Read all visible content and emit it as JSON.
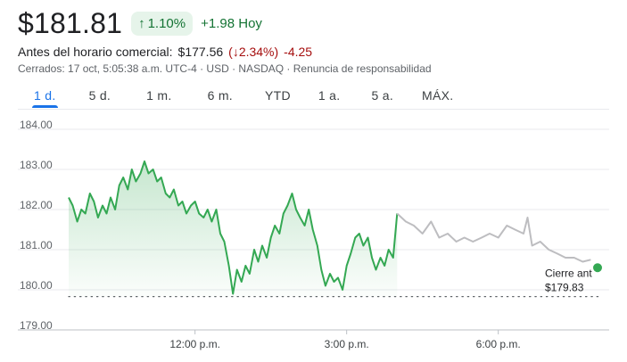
{
  "quote": {
    "price": "$181.81",
    "change_pct": "1.10%",
    "change_abs": "+1.98 Hoy"
  },
  "premarket": {
    "label": "Antes del horario comercial:",
    "price": "$177.56",
    "open_paren": "(",
    "change_pct": "2.34%)",
    "change_abs": "-4.25"
  },
  "meta": {
    "text": "Cerrados: 17 oct, 5:05:38 a.m. UTC-4 · USD · NASDAQ · Renuncia de responsabilidad"
  },
  "tabs": [
    "1 d.",
    "5 d.",
    "1 m.",
    "6 m.",
    "YTD",
    "1 a.",
    "5 a.",
    "MÁX."
  ],
  "active_tab": 0,
  "colors": {
    "up": "#34a853",
    "up_dark": "#137333",
    "down": "#a50e0e",
    "after_hours": "#bdbdc0",
    "accent": "#1a73e8"
  },
  "chart_data": {
    "type": "line",
    "ylim": [
      179.0,
      184.0
    ],
    "y_ticks": [
      "184.00",
      "183.00",
      "182.00",
      "181.00",
      "180.00",
      "179.00"
    ],
    "x_ticks": [
      "12:00 p.m.",
      "3:00 p.m.",
      "6:00 p.m."
    ],
    "xlim_hours": [
      9.5,
      20.0
    ],
    "x_tick_hours": [
      12,
      15,
      18
    ],
    "previous_close": {
      "label": "Cierre ant",
      "value_label": "$179.83",
      "value": 179.83
    },
    "series": [
      {
        "session": "regular",
        "points": [
          [
            9.5,
            182.3
          ],
          [
            9.58,
            182.1
          ],
          [
            9.67,
            181.7
          ],
          [
            9.75,
            182.0
          ],
          [
            9.83,
            181.9
          ],
          [
            9.92,
            182.4
          ],
          [
            10.0,
            182.2
          ],
          [
            10.08,
            181.8
          ],
          [
            10.17,
            182.1
          ],
          [
            10.25,
            181.9
          ],
          [
            10.33,
            182.3
          ],
          [
            10.42,
            182.0
          ],
          [
            10.5,
            182.6
          ],
          [
            10.58,
            182.8
          ],
          [
            10.67,
            182.5
          ],
          [
            10.75,
            183.0
          ],
          [
            10.83,
            182.7
          ],
          [
            10.92,
            182.9
          ],
          [
            11.0,
            183.2
          ],
          [
            11.08,
            182.9
          ],
          [
            11.17,
            183.0
          ],
          [
            11.25,
            182.7
          ],
          [
            11.33,
            182.8
          ],
          [
            11.42,
            182.4
          ],
          [
            11.5,
            182.3
          ],
          [
            11.58,
            182.5
          ],
          [
            11.67,
            182.1
          ],
          [
            11.75,
            182.2
          ],
          [
            11.83,
            181.9
          ],
          [
            11.92,
            182.1
          ],
          [
            12.0,
            182.2
          ],
          [
            12.08,
            181.9
          ],
          [
            12.17,
            181.8
          ],
          [
            12.25,
            182.0
          ],
          [
            12.33,
            181.7
          ],
          [
            12.42,
            182.0
          ],
          [
            12.5,
            181.4
          ],
          [
            12.58,
            181.2
          ],
          [
            12.67,
            180.6
          ],
          [
            12.75,
            179.9
          ],
          [
            12.83,
            180.5
          ],
          [
            12.92,
            180.2
          ],
          [
            13.0,
            180.6
          ],
          [
            13.08,
            180.4
          ],
          [
            13.17,
            181.0
          ],
          [
            13.25,
            180.7
          ],
          [
            13.33,
            181.1
          ],
          [
            13.42,
            180.8
          ],
          [
            13.5,
            181.3
          ],
          [
            13.58,
            181.6
          ],
          [
            13.67,
            181.4
          ],
          [
            13.75,
            181.9
          ],
          [
            13.83,
            182.1
          ],
          [
            13.92,
            182.4
          ],
          [
            14.0,
            182.0
          ],
          [
            14.08,
            181.8
          ],
          [
            14.17,
            181.6
          ],
          [
            14.25,
            182.0
          ],
          [
            14.33,
            181.5
          ],
          [
            14.42,
            181.1
          ],
          [
            14.5,
            180.5
          ],
          [
            14.58,
            180.1
          ],
          [
            14.67,
            180.4
          ],
          [
            14.75,
            180.2
          ],
          [
            14.83,
            180.3
          ],
          [
            14.92,
            180.0
          ],
          [
            15.0,
            180.6
          ],
          [
            15.08,
            180.9
          ],
          [
            15.17,
            181.3
          ],
          [
            15.25,
            181.4
          ],
          [
            15.33,
            181.1
          ],
          [
            15.42,
            181.3
          ],
          [
            15.5,
            180.8
          ],
          [
            15.58,
            180.5
          ],
          [
            15.67,
            180.8
          ],
          [
            15.75,
            180.6
          ],
          [
            15.83,
            181.0
          ],
          [
            15.92,
            180.8
          ],
          [
            16.0,
            181.9
          ]
        ]
      },
      {
        "session": "after_hours",
        "points": [
          [
            16.0,
            181.9
          ],
          [
            16.17,
            181.7
          ],
          [
            16.33,
            181.6
          ],
          [
            16.5,
            181.4
          ],
          [
            16.67,
            181.7
          ],
          [
            16.83,
            181.3
          ],
          [
            17.0,
            181.4
          ],
          [
            17.17,
            181.2
          ],
          [
            17.33,
            181.3
          ],
          [
            17.5,
            181.2
          ],
          [
            17.67,
            181.3
          ],
          [
            17.83,
            181.4
          ],
          [
            18.0,
            181.3
          ],
          [
            18.17,
            181.6
          ],
          [
            18.33,
            181.5
          ],
          [
            18.5,
            181.4
          ],
          [
            18.58,
            181.8
          ],
          [
            18.67,
            181.1
          ],
          [
            18.83,
            181.2
          ],
          [
            19.0,
            181.0
          ],
          [
            19.17,
            180.9
          ],
          [
            19.33,
            180.8
          ],
          [
            19.5,
            180.8
          ],
          [
            19.67,
            180.7
          ],
          [
            19.83,
            180.75
          ]
        ]
      }
    ]
  }
}
